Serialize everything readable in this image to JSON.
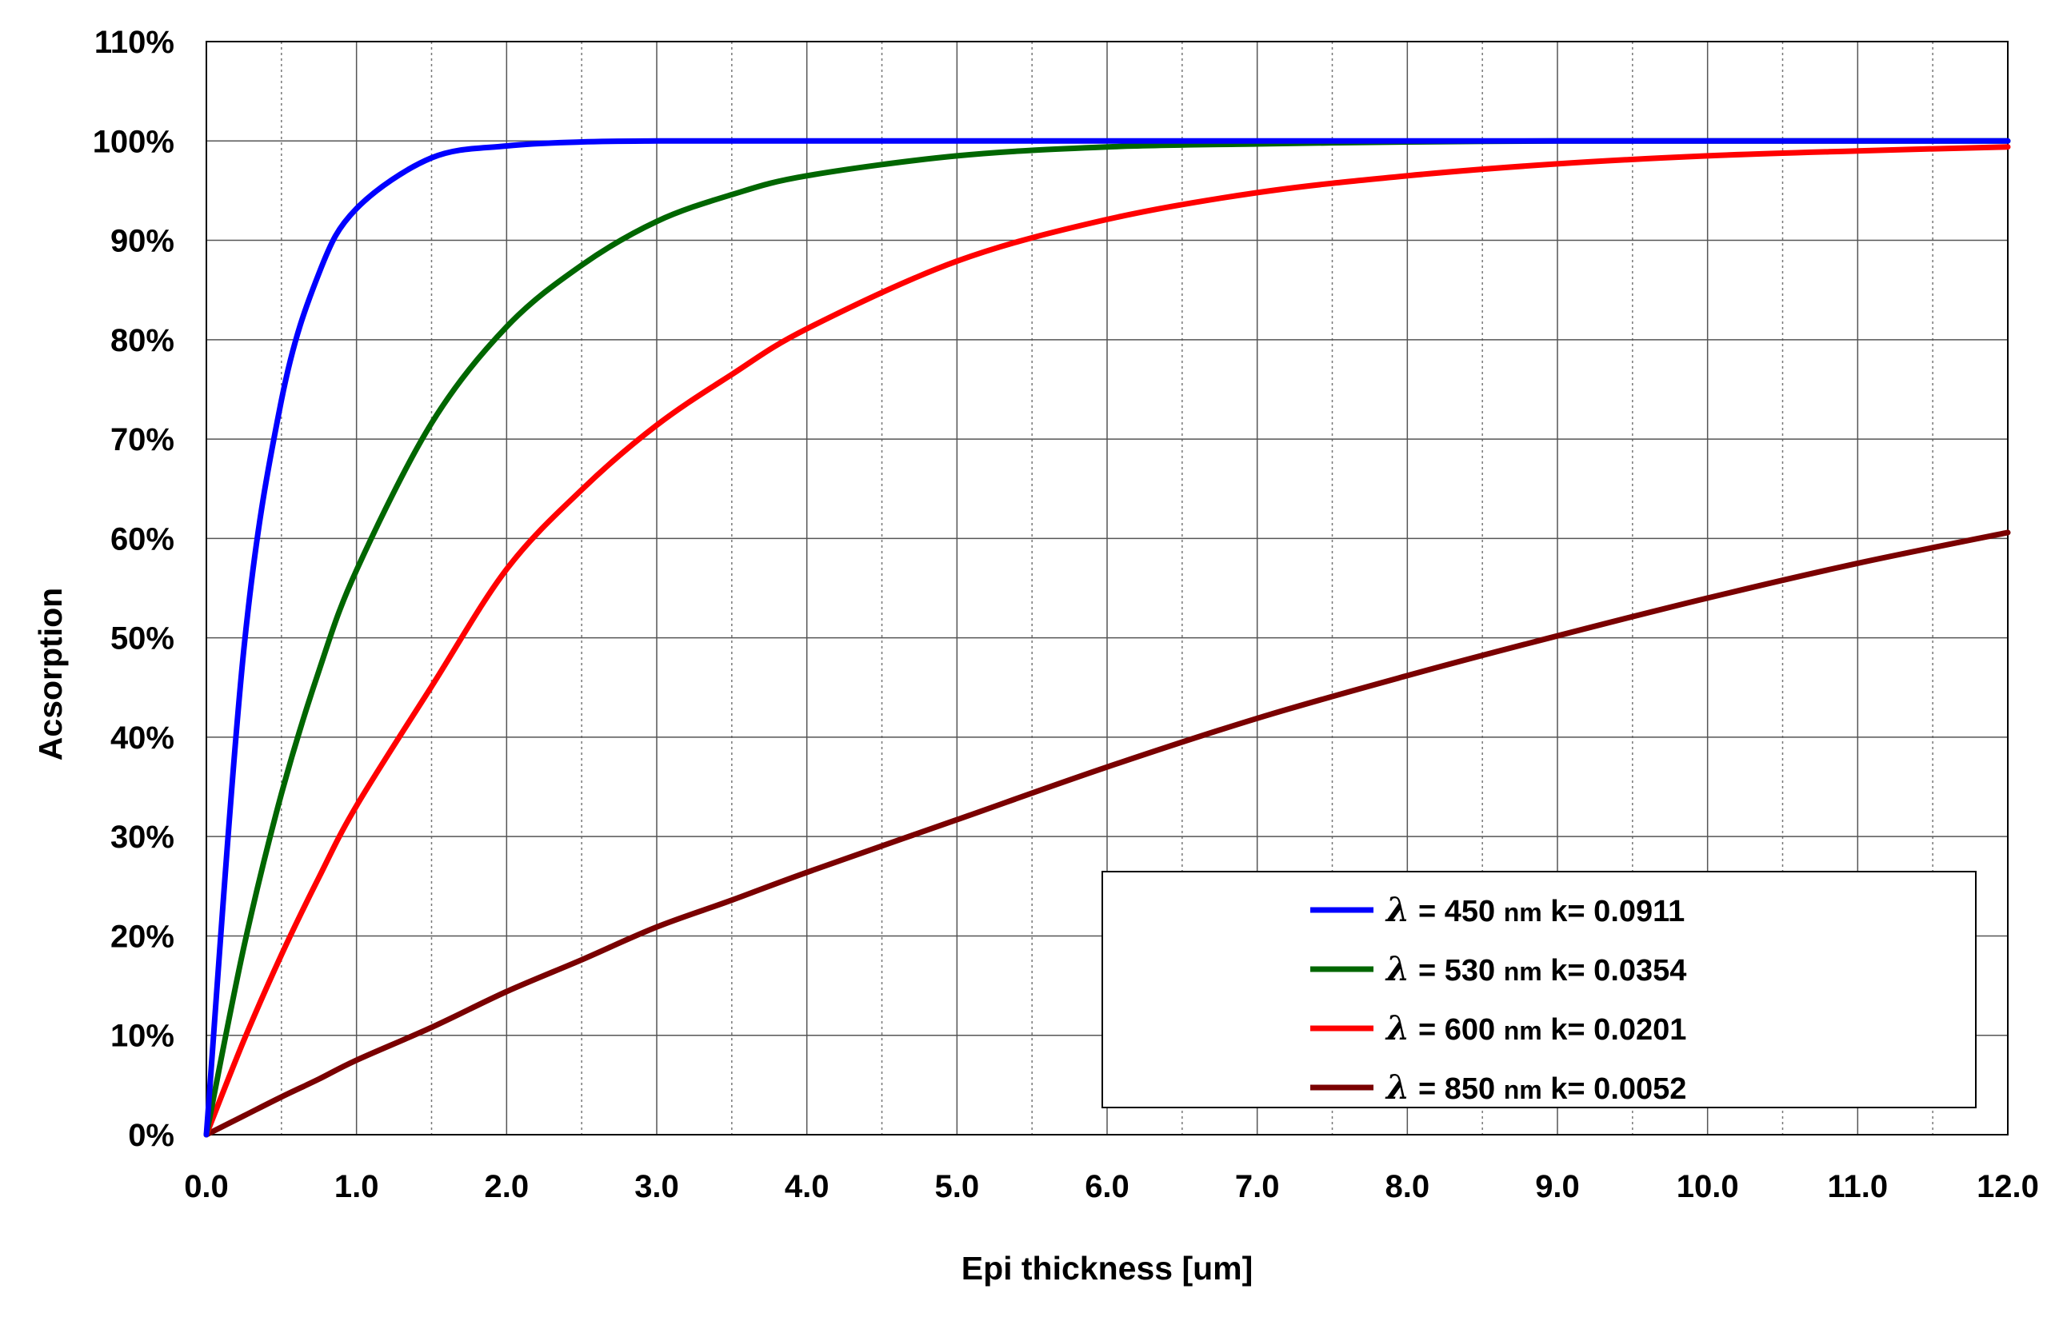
{
  "chart_data": {
    "type": "line",
    "title": "",
    "xlabel": "Epi thickness [um]",
    "ylabel": "Acsorption",
    "xlim": [
      0,
      12
    ],
    "ylim": [
      0,
      110
    ],
    "x_ticks": [
      "0.0",
      "1.0",
      "2.0",
      "3.0",
      "4.0",
      "5.0",
      "6.0",
      "7.0",
      "8.0",
      "9.0",
      "10.0",
      "11.0",
      "12.0"
    ],
    "y_ticks": [
      "0%",
      "10%",
      "20%",
      "30%",
      "40%",
      "50%",
      "60%",
      "70%",
      "80%",
      "90%",
      "100%",
      "110%"
    ],
    "y_unit": "%",
    "grid": true,
    "legend_position": "bottom-right",
    "x": [
      0,
      0.25,
      0.5,
      0.75,
      1,
      1.5,
      2,
      2.5,
      3,
      3.5,
      4,
      5,
      6,
      7,
      8,
      9,
      10,
      11,
      12
    ],
    "series": [
      {
        "name": "λ = 450 nm k= 0.0911",
        "label_symbol": "λ",
        "label_eq": " = ",
        "label_wavelength": "450",
        "label_unit": "nm",
        "label_k": "k= 0.0911",
        "color": "#0000ff",
        "values": [
          0,
          48.9,
          73.9,
          86.7,
          93.2,
          98.3,
          99.5,
          99.9,
          100,
          100,
          100,
          100,
          100,
          100,
          100,
          100,
          100,
          100,
          100
        ]
      },
      {
        "name": "λ = 530 nm k= 0.0354",
        "label_symbol": "λ",
        "label_eq": " = ",
        "label_wavelength": "530",
        "label_unit": "nm",
        "label_k": "k= 0.0354",
        "color": "#006600",
        "values": [
          0,
          18.9,
          34.3,
          46.7,
          56.8,
          71.6,
          81.3,
          87.5,
          91.9,
          94.6,
          96.5,
          98.5,
          99.4,
          99.7,
          99.9,
          100,
          100,
          100,
          100
        ]
      },
      {
        "name": "λ = 600 nm k= 0.0201",
        "label_symbol": "λ",
        "label_eq": " = ",
        "label_wavelength": "600",
        "label_unit": "nm",
        "label_k": "k= 0.0201",
        "color": "#ff0000",
        "values": [
          0,
          9.5,
          18.1,
          25.9,
          33.1,
          45.1,
          56.9,
          64.9,
          71.4,
          76.5,
          81.1,
          87.9,
          92.1,
          94.8,
          96.5,
          97.7,
          98.5,
          99.0,
          99.4
        ]
      },
      {
        "name": "λ = 850 nm k= 0.0052",
        "label_symbol": "λ",
        "label_eq": " = ",
        "label_wavelength": "850",
        "label_unit": "nm",
        "label_k": "k= 0.0052",
        "color": "#7a0000",
        "values": [
          0,
          1.9,
          3.8,
          5.6,
          7.5,
          10.8,
          14.4,
          17.6,
          20.9,
          23.6,
          26.4,
          31.7,
          37.0,
          41.9,
          46.2,
          50.2,
          54.0,
          57.5,
          60.6
        ]
      }
    ]
  }
}
